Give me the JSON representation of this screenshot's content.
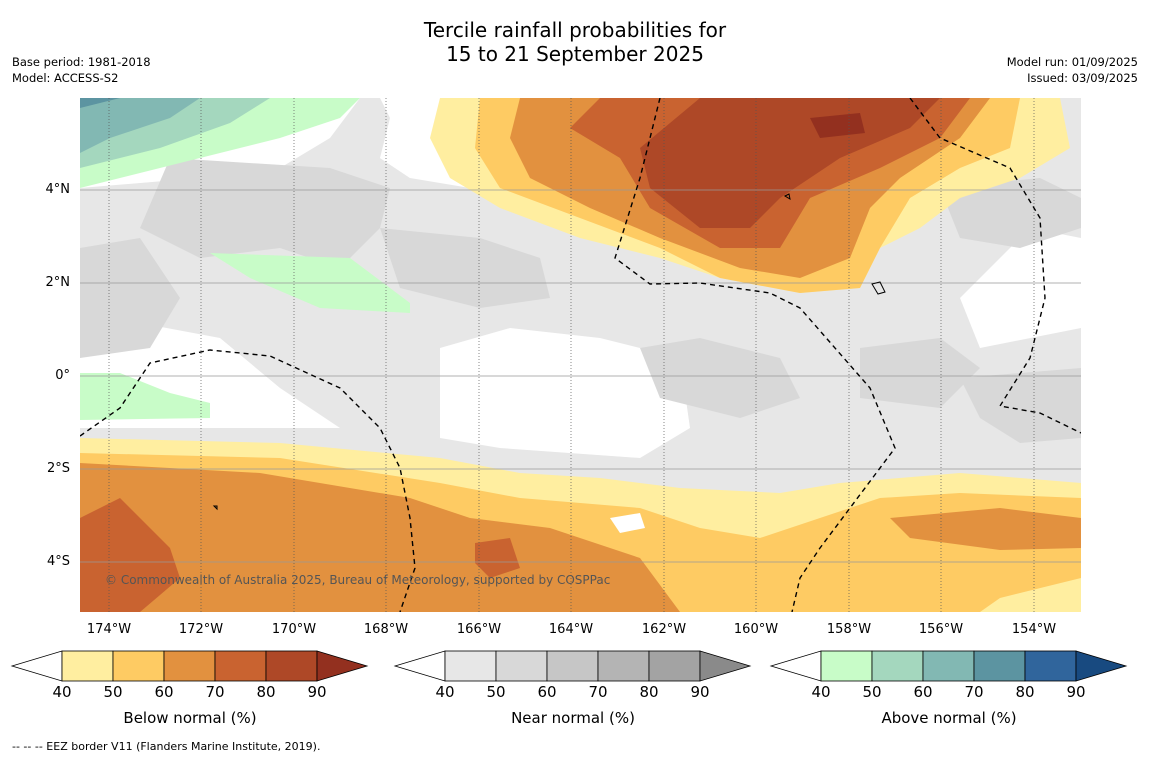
{
  "title_line1": "Tercile rainfall probabilities for",
  "title_line2": "15 to 21 September 2025",
  "meta_left": [
    "Base period: 1981-2018",
    "Model: ACCESS-S2"
  ],
  "meta_right": [
    "Model run: 01/09/2025",
    "Issued: 03/09/2025"
  ],
  "copyright": "© Commonwealth of Australia 2025, Bureau of Meteorology, supported by COSPPac",
  "lat_labels": [
    "4°N",
    "2°N",
    "0°",
    "2°S",
    "4°S"
  ],
  "lon_labels": [
    "174°W",
    "172°W",
    "170°W",
    "168°W",
    "166°W",
    "164°W",
    "162°W",
    "160°W",
    "158°W",
    "156°W",
    "154°W"
  ],
  "colorbars": [
    {
      "label": "Below normal (%)",
      "colors": [
        "#ffeea0",
        "#fecb63",
        "#e2913f",
        "#c96330",
        "#ae4827",
        "#93301f"
      ]
    },
    {
      "label": "Near normal (%)",
      "colors": [
        "#e7e7e7",
        "#d8d8d8",
        "#c6c6c6",
        "#b4b4b4",
        "#a3a3a3",
        "#8a8a8a"
      ]
    },
    {
      "label": "Above normal (%)",
      "colors": [
        "#c8fcc8",
        "#a4d7be",
        "#82b8b3",
        "#5c94a1",
        "#30659c",
        "#184a80"
      ]
    }
  ],
  "colorbar_ticks": [
    "40",
    "50",
    "60",
    "70",
    "80",
    "90"
  ],
  "footer": "--  --  -- EEZ border V11 (Flanders Marine Institute, 2019)."
}
